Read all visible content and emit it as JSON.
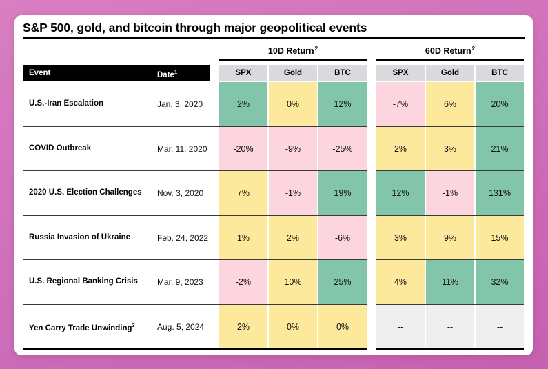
{
  "title": "S&P 500, gold, and bitcoin through major geopolitical events",
  "headers": {
    "event": "Event",
    "date": "Date",
    "date_footnote": "1",
    "group_10d": "10D Return",
    "group_10d_footnote": "2",
    "group_60d": "60D Return",
    "group_60d_footnote": "2",
    "cols_10d": [
      "SPX",
      "Gold",
      "BTC"
    ],
    "cols_60d": [
      "SPX",
      "Gold",
      "BTC"
    ]
  },
  "colors": {
    "positive_high": "#82c5ab",
    "positive": "#fce99b",
    "negative": "#fcd5df",
    "na": "#efefef"
  },
  "chart_data": {
    "type": "table",
    "title": "S&P 500, gold, and bitcoin through major geopolitical events",
    "columns": [
      "Event",
      "Date",
      "10D SPX",
      "10D Gold",
      "10D BTC",
      "60D SPX",
      "60D Gold",
      "60D BTC"
    ],
    "rows": [
      {
        "event": "U.S.-Iran Escalation",
        "footnote": "",
        "date": "Jan. 3, 2020",
        "ret10": [
          {
            "v": "2%",
            "c": "positive_high"
          },
          {
            "v": "0%",
            "c": "positive"
          },
          {
            "v": "12%",
            "c": "positive_high"
          }
        ],
        "ret60": [
          {
            "v": "-7%",
            "c": "negative"
          },
          {
            "v": "6%",
            "c": "positive"
          },
          {
            "v": "20%",
            "c": "positive_high"
          }
        ]
      },
      {
        "event": "COVID Outbreak",
        "footnote": "",
        "date": "Mar. 11, 2020",
        "ret10": [
          {
            "v": "-20%",
            "c": "negative"
          },
          {
            "v": "-9%",
            "c": "negative"
          },
          {
            "v": "-25%",
            "c": "negative"
          }
        ],
        "ret60": [
          {
            "v": "2%",
            "c": "positive"
          },
          {
            "v": "3%",
            "c": "positive"
          },
          {
            "v": "21%",
            "c": "positive_high"
          }
        ]
      },
      {
        "event": "2020 U.S. Election Challenges",
        "footnote": "",
        "date": "Nov. 3, 2020",
        "ret10": [
          {
            "v": "7%",
            "c": "positive"
          },
          {
            "v": "-1%",
            "c": "negative"
          },
          {
            "v": "19%",
            "c": "positive_high"
          }
        ],
        "ret60": [
          {
            "v": "12%",
            "c": "positive_high"
          },
          {
            "v": "-1%",
            "c": "negative"
          },
          {
            "v": "131%",
            "c": "positive_high"
          }
        ]
      },
      {
        "event": "Russia Invasion of Ukraine",
        "footnote": "",
        "date": "Feb. 24, 2022",
        "ret10": [
          {
            "v": "1%",
            "c": "positive"
          },
          {
            "v": "2%",
            "c": "positive"
          },
          {
            "v": "-6%",
            "c": "negative"
          }
        ],
        "ret60": [
          {
            "v": "3%",
            "c": "positive"
          },
          {
            "v": "9%",
            "c": "positive"
          },
          {
            "v": "15%",
            "c": "positive"
          }
        ]
      },
      {
        "event": "U.S. Regional Banking Crisis",
        "footnote": "",
        "date": "Mar. 9, 2023",
        "ret10": [
          {
            "v": "-2%",
            "c": "negative"
          },
          {
            "v": "10%",
            "c": "positive"
          },
          {
            "v": "25%",
            "c": "positive_high"
          }
        ],
        "ret60": [
          {
            "v": "4%",
            "c": "positive"
          },
          {
            "v": "11%",
            "c": "positive_high"
          },
          {
            "v": "32%",
            "c": "positive_high"
          }
        ]
      },
      {
        "event": "Yen Carry Trade Unwinding",
        "footnote": "3",
        "date": "Aug. 5, 2024",
        "ret10": [
          {
            "v": "2%",
            "c": "positive"
          },
          {
            "v": "0%",
            "c": "positive"
          },
          {
            "v": "0%",
            "c": "positive"
          }
        ],
        "ret60": [
          {
            "v": "--",
            "c": "na"
          },
          {
            "v": "--",
            "c": "na"
          },
          {
            "v": "--",
            "c": "na"
          }
        ]
      }
    ]
  }
}
